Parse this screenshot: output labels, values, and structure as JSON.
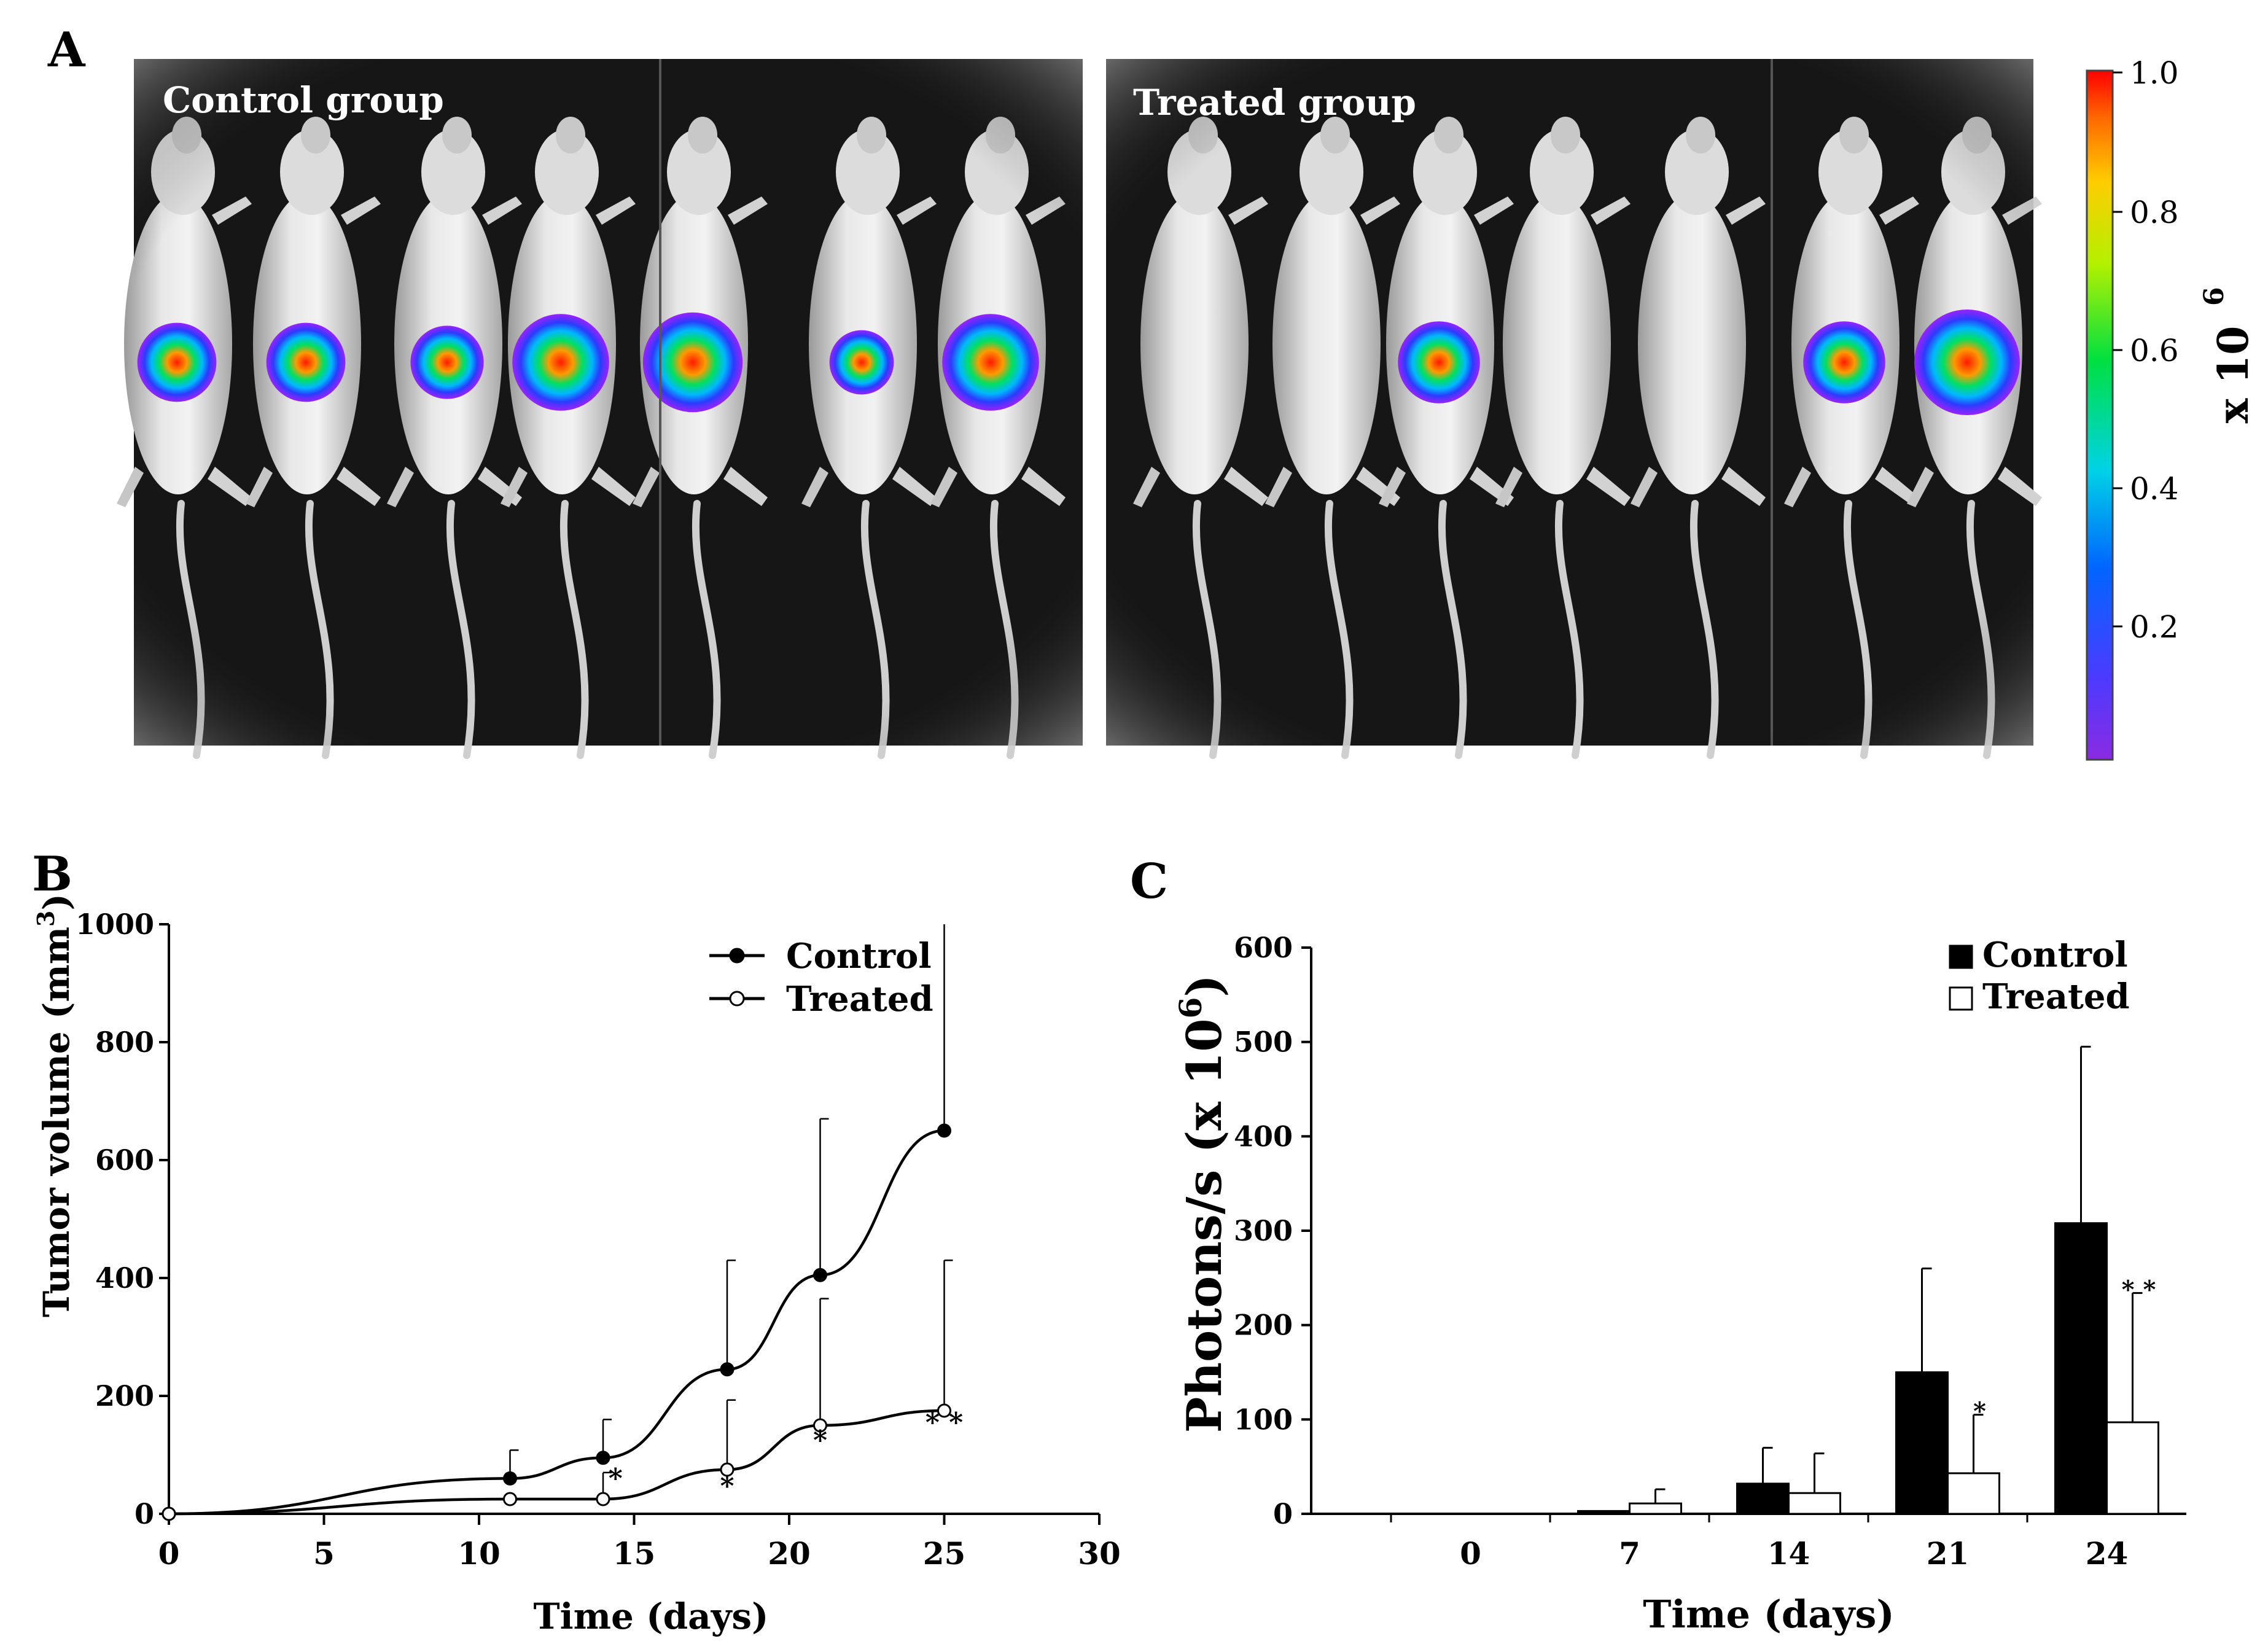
{
  "panels": {
    "a": {
      "label": "A",
      "control_label": "Control group",
      "treated_label": "Treated group",
      "colorbar": {
        "ticks": [
          "1.0",
          "0.8",
          "0.6",
          "0.4",
          "0.2"
        ],
        "multiplier": "x 10",
        "exponent": "6"
      },
      "control_signal": [
        0.55,
        0.55,
        0.45,
        0.85,
        0.9,
        0.3,
        0.85
      ],
      "treated_signal": [
        0,
        0,
        0.6,
        0,
        0,
        0.6,
        1.0
      ]
    },
    "b": {
      "label": "B"
    },
    "c": {
      "label": "C"
    }
  },
  "chart_data": [
    {
      "type": "line",
      "panel": "B",
      "xlabel": "Time (days)",
      "ylabel": "Tumor volume (mm",
      "ylabel_sup": "3",
      "ylabel_close": ")",
      "xlim": [
        0,
        30
      ],
      "ylim": [
        0,
        1000
      ],
      "xticks": [
        "0",
        "5",
        "10",
        "15",
        "20",
        "25",
        "30"
      ],
      "yticks": [
        "0",
        "200",
        "400",
        "600",
        "800",
        "1000"
      ],
      "legend": "top-right",
      "series": [
        {
          "name": "Control",
          "marker": "filled",
          "x": [
            0,
            11,
            14,
            18,
            21,
            25
          ],
          "y": [
            0,
            60,
            95,
            245,
            405,
            650
          ],
          "err": [
            0,
            48,
            65,
            185,
            265,
            350
          ]
        },
        {
          "name": "Treated",
          "marker": "open",
          "x": [
            0,
            11,
            14,
            18,
            21,
            25
          ],
          "y": [
            0,
            25,
            25,
            75,
            150,
            175
          ],
          "err": [
            0,
            0,
            45,
            118,
            215,
            255
          ]
        }
      ],
      "annotations": [
        {
          "text": "*",
          "x": 14.4,
          "y": 55
        },
        {
          "text": "*",
          "x": 18,
          "y": 42
        },
        {
          "text": "*",
          "x": 21,
          "y": 120
        },
        {
          "text": "* *",
          "x": 25,
          "y": 150
        }
      ]
    },
    {
      "type": "bar",
      "panel": "C",
      "xlabel": "Time (days)",
      "ylabel": "Photons/s (x 10",
      "ylabel_sup": "6",
      "ylabel_close": ")",
      "ylim": [
        0,
        600
      ],
      "categories": [
        "0",
        "7",
        "14",
        "21",
        "24"
      ],
      "yticks": [
        "0",
        "100",
        "200",
        "300",
        "400",
        "500",
        "600"
      ],
      "legend": "top-right",
      "series": [
        {
          "name": "Control",
          "fill": "#000000",
          "values": [
            0,
            3,
            32,
            150,
            308
          ],
          "err": [
            0,
            0,
            38,
            110,
            187
          ]
        },
        {
          "name": "Treated",
          "fill": "#ffffff",
          "values": [
            0,
            11,
            22,
            43,
            97
          ],
          "err": [
            0,
            15,
            42,
            62,
            137
          ]
        }
      ],
      "annotations": [
        {
          "text": "*",
          "category": "21",
          "series": "Treated"
        },
        {
          "text": "* *",
          "category": "24",
          "series": "Treated"
        }
      ]
    }
  ]
}
